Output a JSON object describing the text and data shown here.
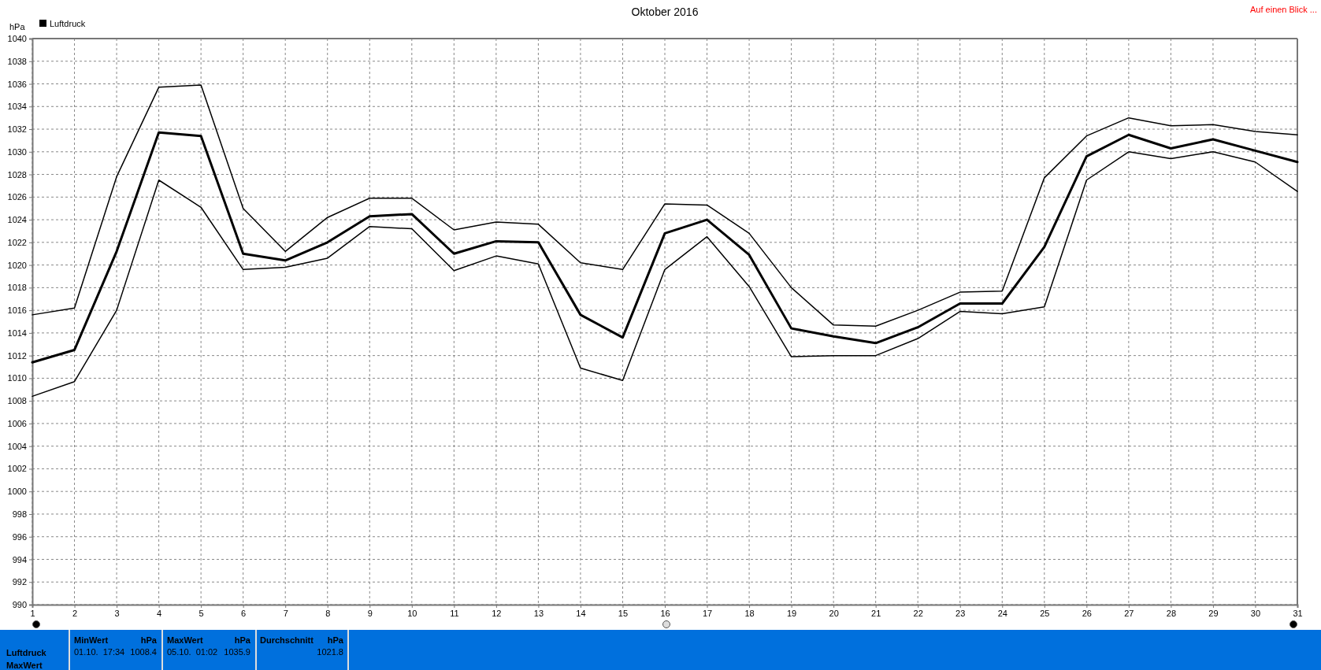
{
  "chart_data": {
    "type": "line",
    "title": "Oktober 2016",
    "ylabel": "hPa",
    "x": [
      1,
      2,
      3,
      4,
      5,
      6,
      7,
      8,
      9,
      10,
      11,
      12,
      13,
      14,
      15,
      16,
      17,
      18,
      19,
      20,
      21,
      22,
      23,
      24,
      25,
      26,
      27,
      28,
      29,
      30,
      31
    ],
    "xlim": [
      1,
      31
    ],
    "xticks": [
      1,
      2,
      3,
      4,
      5,
      6,
      7,
      8,
      9,
      10,
      11,
      12,
      13,
      14,
      15,
      16,
      17,
      18,
      19,
      20,
      21,
      22,
      23,
      24,
      25,
      26,
      27,
      28,
      29,
      30,
      31
    ],
    "ylim": [
      990,
      1040
    ],
    "yticks": [
      990,
      992,
      994,
      996,
      998,
      1000,
      1002,
      1004,
      1006,
      1008,
      1010,
      1012,
      1014,
      1016,
      1018,
      1020,
      1022,
      1024,
      1026,
      1028,
      1030,
      1032,
      1034,
      1036,
      1038,
      1040
    ],
    "grid": true,
    "legend": "top left",
    "marker": "none",
    "line_style": "solid",
    "series": [
      {
        "color": "#000000",
        "values": [
          1015.6,
          1016.2,
          1027.8,
          1035.7,
          1035.9,
          1025.0,
          1021.2,
          1024.2,
          1025.9,
          1025.9,
          1023.1,
          1023.8,
          1023.6,
          1020.2,
          1019.6,
          1025.4,
          1025.3,
          1022.8,
          1018.0,
          1014.7,
          1014.6,
          1016.0,
          1017.6,
          1017.7,
          1027.7,
          1031.4,
          1033.0,
          1032.3,
          1032.4,
          1031.8,
          1031.5
        ]
      },
      {
        "name": "Luftdruck",
        "color": "#000000",
        "values": [
          1011.4,
          1012.5,
          1021.2,
          1031.7,
          1031.4,
          1021.0,
          1020.4,
          1022.0,
          1024.3,
          1024.5,
          1021.0,
          1022.1,
          1022.0,
          1015.6,
          1013.6,
          1022.8,
          1024.0,
          1020.9,
          1014.4,
          1013.7,
          1013.1,
          1014.5,
          1016.6,
          1016.6,
          1021.6,
          1029.6,
          1031.5,
          1030.3,
          1031.1,
          1030.1,
          1029.1
        ]
      },
      {
        "color": "#000000",
        "values": [
          1008.4,
          1009.7,
          1016.0,
          1027.5,
          1025.1,
          1019.6,
          1019.8,
          1020.6,
          1023.4,
          1023.2,
          1019.5,
          1020.8,
          1020.1,
          1010.9,
          1009.8,
          1019.6,
          1022.5,
          1018.1,
          1011.9,
          1012.0,
          1012.0,
          1013.5,
          1015.9,
          1015.7,
          1016.3,
          1027.5,
          1030.0,
          1029.4,
          1030.0,
          1029.1,
          1026.5
        ]
      }
    ],
    "annotations": [
      "Auf einen Blick ...",
      "Luftdruck",
      "MaxWert",
      "MinWert",
      "hPa",
      "01.10.  17:34",
      "1008.4",
      "MaxWert",
      "hPa",
      "05.10.  01:02",
      "1035.9",
      "Durchschnitt",
      "hPa",
      "1021.8"
    ]
  }
}
